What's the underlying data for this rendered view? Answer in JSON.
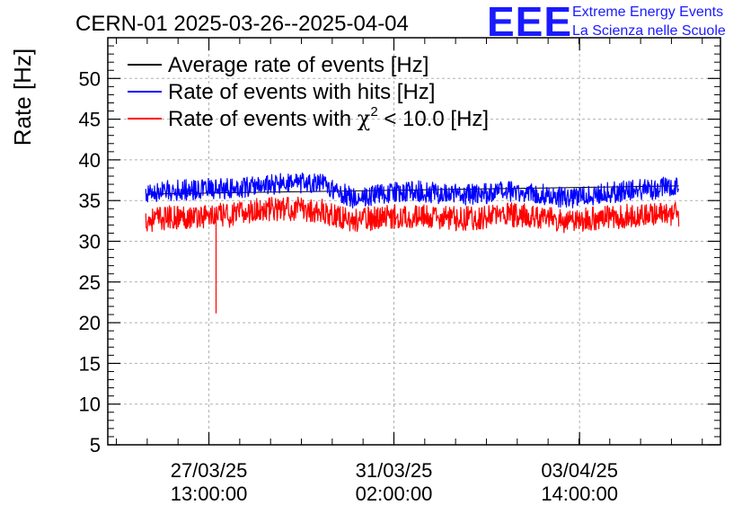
{
  "header": {
    "title": "CERN-01 2025-03-26--2025-04-04",
    "logo_text": "EEE",
    "logo_line1": "Extreme Energy Events",
    "logo_line2": "La Scienza nelle Scuole"
  },
  "chart_data": {
    "type": "line",
    "title": "CERN-01 2025-03-26--2025-04-04",
    "ylabel": "Rate [Hz]",
    "xlabel": "",
    "ylim": [
      5,
      55
    ],
    "xlim_days": [
      0,
      10
    ],
    "grid": true,
    "legend_position": "top-left",
    "y_ticks": [
      5,
      10,
      15,
      20,
      25,
      30,
      35,
      40,
      45,
      50
    ],
    "x_ticks": [
      {
        "day": 1.65,
        "date": "27/03/25",
        "time": "13:00:00"
      },
      {
        "day": 4.67,
        "date": "31/03/25",
        "time": "02:00:00"
      },
      {
        "day": 7.7,
        "date": "03/04/25",
        "time": "14:00:00"
      }
    ],
    "series": [
      {
        "name": "Average rate of events [Hz]",
        "color": "#000000",
        "x": [
          0.62,
          9.32
        ],
        "values": [
          35.8,
          36.8
        ],
        "noise": 0.0
      },
      {
        "name": "Rate of events with hits [Hz]",
        "color": "#0000ff",
        "x": [
          0.62,
          1.0,
          1.5,
          2.0,
          2.5,
          3.0,
          3.5,
          4.0,
          4.5,
          5.0,
          5.5,
          6.0,
          6.5,
          7.0,
          7.5,
          8.0,
          8.5,
          9.0,
          9.32
        ],
        "values": [
          35.8,
          36.2,
          36.4,
          36.5,
          36.9,
          37.1,
          37.0,
          35.3,
          35.9,
          36.2,
          35.8,
          35.7,
          36.1,
          35.9,
          35.3,
          35.8,
          36.2,
          36.5,
          36.9
        ],
        "noise": 1.3
      },
      {
        "name": "Rate of events with χ² < 10.0 [Hz]",
        "color": "#ff0000",
        "x": [
          0.62,
          1.0,
          1.5,
          2.0,
          2.5,
          3.0,
          3.5,
          4.0,
          4.5,
          5.0,
          5.5,
          6.0,
          6.5,
          7.0,
          7.5,
          8.0,
          8.5,
          9.0,
          9.32
        ],
        "values": [
          32.6,
          32.9,
          33.1,
          33.2,
          33.9,
          34.0,
          33.7,
          32.5,
          33.0,
          33.1,
          32.8,
          32.8,
          33.3,
          33.0,
          32.4,
          32.9,
          33.1,
          33.3,
          33.3
        ],
        "noise": 1.5,
        "dip": {
          "x": 1.77,
          "value": 21.2
        }
      }
    ],
    "legend": [
      {
        "label": "Average rate of events [Hz]",
        "color": "#000000"
      },
      {
        "label": "Rate of events with hits [Hz]",
        "color": "#0000ff"
      },
      {
        "label_prefix": "Rate of events with ",
        "symbol": "χ",
        "superscript": "2",
        "label_suffix": " < 10.0 [Hz]",
        "color": "#ff0000"
      }
    ]
  }
}
